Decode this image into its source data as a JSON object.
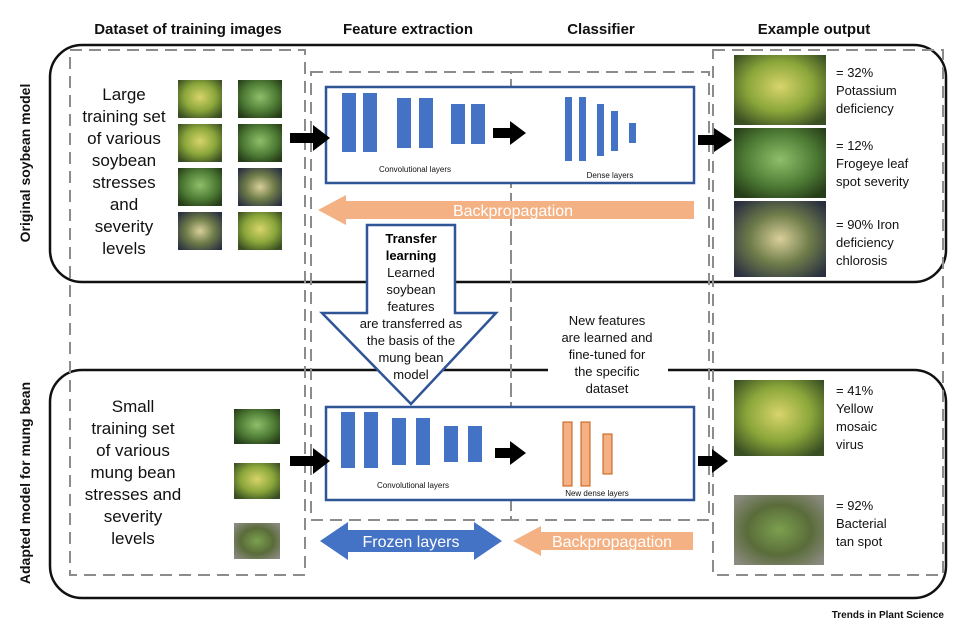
{
  "headers": {
    "dataset": "Dataset of training images",
    "feature": "Feature extraction",
    "classifier": "Classifier",
    "output": "Example output"
  },
  "row_labels": {
    "top": "Original soybean model",
    "bottom": "Adapted model for mung bean"
  },
  "top_training": [
    "Large",
    "training set",
    "of various",
    "soybean",
    "stresses",
    "and",
    "severity",
    "levels"
  ],
  "bottom_training": [
    "Small",
    "training set",
    "of various",
    "mung bean",
    "stresses and",
    "severity",
    "levels"
  ],
  "network": {
    "conv_label": "Convolutional layers",
    "dense_label": "Dense layers",
    "new_dense_label": "New dense layers"
  },
  "backprop_label": "Backpropagation",
  "frozen_label": "Frozen layers",
  "transfer": {
    "title": [
      "Transfer",
      "learning"
    ],
    "body": [
      "Learned",
      "soybean",
      "features",
      "are transferred as",
      "the basis of the",
      "mung bean",
      "model"
    ]
  },
  "new_features": [
    "New features",
    "are learned and",
    "fine-tuned for",
    "the specific",
    "dataset"
  ],
  "top_outputs": [
    {
      "lines": [
        "= 32%",
        "Potassium",
        "deficiency"
      ]
    },
    {
      "lines": [
        "= 12%",
        "Frogeye leaf",
        "spot severity"
      ]
    },
    {
      "lines": [
        "= 90% Iron",
        "deficiency",
        "chlorosis"
      ]
    }
  ],
  "bottom_outputs": [
    {
      "lines": [
        "= 41%",
        "Yellow",
        "mosaic",
        "virus"
      ]
    },
    {
      "lines": [
        "= 92%",
        "Bacterial",
        "tan spot"
      ]
    }
  ],
  "credit": "Trends in Plant Science",
  "colors": {
    "layer_blue": "#4472c4",
    "layer_orange": "#f4b183",
    "box_border": "#2f5597",
    "backprop_orange": "#f4b183",
    "frozen_blue": "#4472c4",
    "dash_gray": "#8c8c8c"
  }
}
